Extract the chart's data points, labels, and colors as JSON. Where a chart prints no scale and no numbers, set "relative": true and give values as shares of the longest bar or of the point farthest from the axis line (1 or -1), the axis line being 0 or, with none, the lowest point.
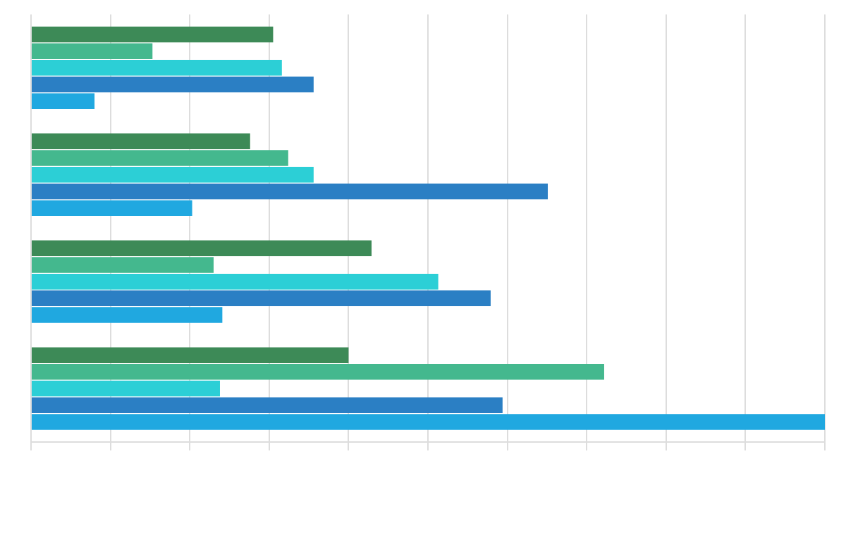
{
  "chart_data": {
    "type": "bar",
    "orientation": "horizontal",
    "relative": true,
    "grid": "x",
    "legend": false,
    "categories": [
      null,
      null,
      null,
      null
    ],
    "series": [
      {
        "color": "#3d8a57",
        "values": [
          0.305,
          0.276,
          0.429,
          0.4
        ]
      },
      {
        "color": "#44b88e",
        "values": [
          0.153,
          0.324,
          0.23,
          0.722
        ]
      },
      {
        "color": "#2ccfd6",
        "values": [
          0.316,
          0.356,
          0.513,
          0.238
        ]
      },
      {
        "color": "#2b7fc4",
        "values": [
          0.356,
          0.651,
          0.579,
          0.594
        ]
      },
      {
        "color": "#20a8e0",
        "values": [
          0.08,
          0.203,
          0.241,
          1
        ]
      }
    ]
  }
}
